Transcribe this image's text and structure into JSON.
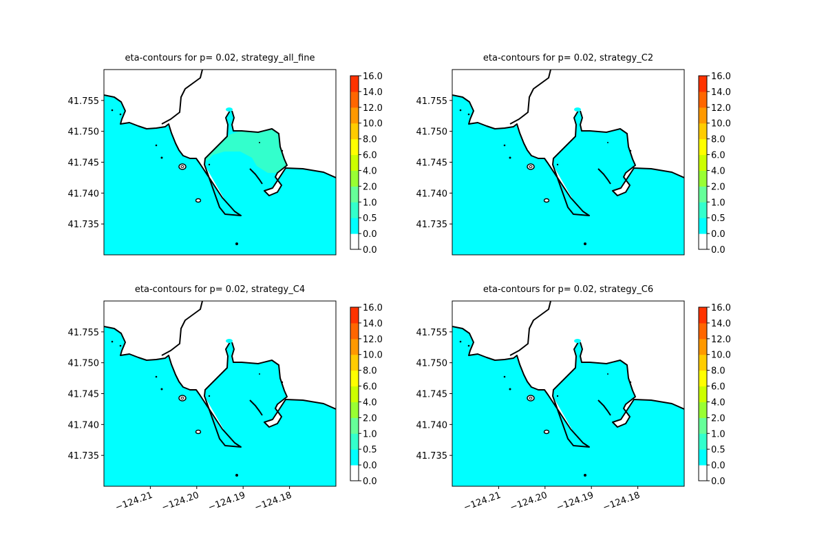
{
  "chart_data": [
    {
      "type": "contour",
      "title": "eta-contours for p= 0.02, strategy_all_fine",
      "xlim": [
        -124.22,
        -124.17
      ],
      "ylim": [
        41.73,
        41.76
      ],
      "yticks": [
        41.735,
        {
          "value": 41.74,
          "label": "41.740"
        },
        41.745,
        {
          "value": 41.75,
          "label": "41.750"
        },
        41.755
      ],
      "colorbar": {
        "ticks": [
          {
            "value": 0,
            "label": "0.0"
          },
          {
            "value": 0,
            "label": "0.0"
          },
          0.5,
          {
            "value": 1,
            "label": "1.0"
          },
          {
            "value": 2,
            "label": "2.0"
          },
          {
            "value": 4,
            "label": "4.0"
          },
          {
            "value": 6,
            "label": "6.0"
          },
          {
            "value": 8,
            "label": "8.0"
          },
          {
            "value": 10,
            "label": "10.0"
          },
          {
            "value": 12,
            "label": "12.0"
          },
          {
            "value": 14,
            "label": "14.0"
          },
          {
            "value": 16,
            "label": "16.0"
          }
        ],
        "colors": [
          "#ffffff",
          "#00ffff",
          "#33ffcc",
          "#66ff99",
          "#99ff33",
          "#ccff00",
          "#ffff00",
          "#ffcc00",
          "#ff9900",
          "#ff6600",
          "#ff3300"
        ]
      }
    },
    {
      "type": "contour",
      "title": "eta-contours for p= 0.02, strategy_C2",
      "xlim": [
        -124.22,
        -124.17
      ],
      "ylim": [
        41.73,
        41.76
      ],
      "yticks": [
        41.735,
        {
          "value": 41.74,
          "label": "41.740"
        },
        41.745,
        {
          "value": 41.75,
          "label": "41.750"
        },
        41.755
      ],
      "colorbar": {
        "ticks": [
          {
            "value": 0,
            "label": "0.0"
          },
          {
            "value": 0,
            "label": "0.0"
          },
          0.5,
          {
            "value": 1,
            "label": "1.0"
          },
          {
            "value": 2,
            "label": "2.0"
          },
          {
            "value": 4,
            "label": "4.0"
          },
          {
            "value": 6,
            "label": "6.0"
          },
          {
            "value": 8,
            "label": "8.0"
          },
          {
            "value": 10,
            "label": "10.0"
          },
          {
            "value": 12,
            "label": "12.0"
          },
          {
            "value": 14,
            "label": "14.0"
          },
          {
            "value": 16,
            "label": "16.0"
          }
        ],
        "colors": [
          "#ffffff",
          "#00ffff",
          "#33ffcc",
          "#66ff99",
          "#99ff33",
          "#ccff00",
          "#ffff00",
          "#ffcc00",
          "#ff9900",
          "#ff6600",
          "#ff3300"
        ]
      }
    },
    {
      "type": "contour",
      "title": "eta-contours for p= 0.02, strategy_C4",
      "xlim": [
        -124.22,
        -124.17
      ],
      "ylim": [
        41.73,
        41.76
      ],
      "xticks": [
        {
          "value": -124.21,
          "label": "−124.21"
        },
        {
          "value": -124.2,
          "label": "−124.20"
        },
        {
          "value": -124.19,
          "label": "−124.19"
        },
        {
          "value": -124.18,
          "label": "−124.18"
        }
      ],
      "yticks": [
        41.735,
        {
          "value": 41.74,
          "label": "41.740"
        },
        41.745,
        {
          "value": 41.75,
          "label": "41.750"
        },
        41.755
      ],
      "colorbar": {
        "ticks": [
          {
            "value": 0,
            "label": "0.0"
          },
          {
            "value": 0,
            "label": "0.0"
          },
          0.5,
          {
            "value": 1,
            "label": "1.0"
          },
          {
            "value": 2,
            "label": "2.0"
          },
          {
            "value": 4,
            "label": "4.0"
          },
          {
            "value": 6,
            "label": "6.0"
          },
          {
            "value": 8,
            "label": "8.0"
          },
          {
            "value": 10,
            "label": "10.0"
          },
          {
            "value": 12,
            "label": "12.0"
          },
          {
            "value": 14,
            "label": "14.0"
          },
          {
            "value": 16,
            "label": "16.0"
          }
        ],
        "colors": [
          "#ffffff",
          "#00ffff",
          "#33ffcc",
          "#66ff99",
          "#99ff33",
          "#ccff00",
          "#ffff00",
          "#ffcc00",
          "#ff9900",
          "#ff6600",
          "#ff3300"
        ]
      }
    },
    {
      "type": "contour",
      "title": "eta-contours for p= 0.02, strategy_C6",
      "xlim": [
        -124.22,
        -124.17
      ],
      "ylim": [
        41.73,
        41.76
      ],
      "xticks": [
        {
          "value": -124.21,
          "label": "−124.21"
        },
        {
          "value": -124.2,
          "label": "−124.20"
        },
        {
          "value": -124.19,
          "label": "−124.19"
        },
        {
          "value": -124.18,
          "label": "−124.18"
        }
      ],
      "yticks": [
        41.735,
        {
          "value": 41.74,
          "label": "41.740"
        },
        41.745,
        {
          "value": 41.75,
          "label": "41.750"
        },
        41.755
      ],
      "colorbar": {
        "ticks": [
          {
            "value": 0,
            "label": "0.0"
          },
          {
            "value": 0,
            "label": "0.0"
          },
          0.5,
          {
            "value": 1,
            "label": "1.0"
          },
          {
            "value": 2,
            "label": "2.0"
          },
          {
            "value": 4,
            "label": "4.0"
          },
          {
            "value": 6,
            "label": "6.0"
          },
          {
            "value": 8,
            "label": "8.0"
          },
          {
            "value": 10,
            "label": "10.0"
          },
          {
            "value": 12,
            "label": "12.0"
          },
          {
            "value": 14,
            "label": "14.0"
          },
          {
            "value": 16,
            "label": "16.0"
          }
        ],
        "colors": [
          "#ffffff",
          "#00ffff",
          "#33ffcc",
          "#66ff99",
          "#99ff33",
          "#ccff00",
          "#ffff00",
          "#ffcc00",
          "#ff9900",
          "#ff6600",
          "#ff3300"
        ]
      }
    }
  ]
}
